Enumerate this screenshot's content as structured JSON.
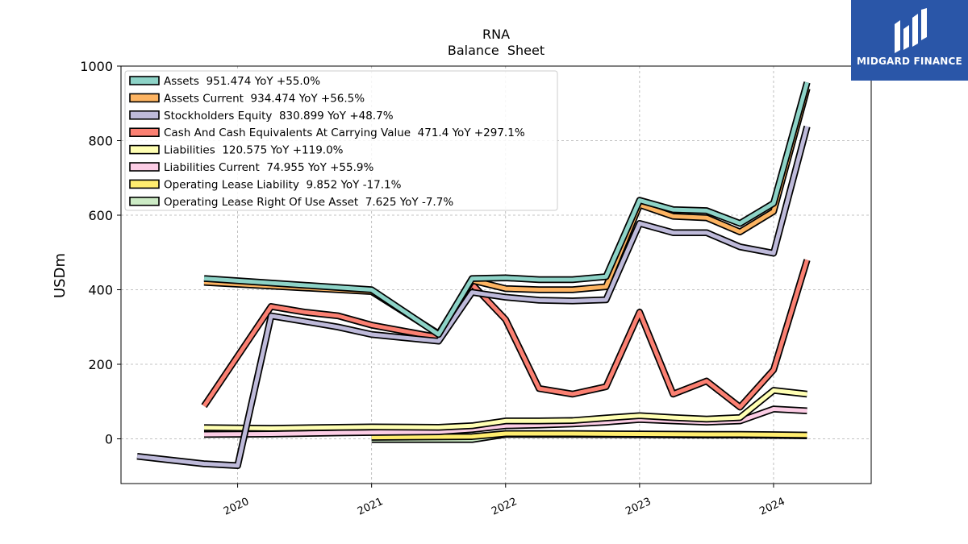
{
  "chart_data": {
    "type": "line",
    "title": "RNA",
    "subtitle": "Balance  Sheet",
    "ylabel": "USDm",
    "xlabel": "",
    "ylim": [
      -120,
      1000
    ],
    "yticks": [
      0,
      200,
      400,
      600,
      800,
      1000
    ],
    "xticks": [
      2020,
      2021,
      2022,
      2023,
      2024
    ],
    "x_range": [
      2019.25,
      2024.5
    ],
    "grid": true,
    "legend_position": "top-left",
    "series": [
      {
        "name": "Assets",
        "legend": "Assets  951.474 YoY +55.0%",
        "color": "#8dd3c7",
        "points": [
          [
            2019.75,
            430
          ],
          [
            2021.0,
            400
          ],
          [
            2021.5,
            280
          ],
          [
            2021.75,
            430
          ],
          [
            2022.0,
            432
          ],
          [
            2022.25,
            427
          ],
          [
            2022.5,
            427
          ],
          [
            2022.75,
            435
          ],
          [
            2023.0,
            640
          ],
          [
            2023.25,
            615
          ],
          [
            2023.5,
            612
          ],
          [
            2023.75,
            578
          ],
          [
            2024.0,
            632
          ],
          [
            2024.25,
            956
          ]
        ]
      },
      {
        "name": "Assets Current",
        "legend": "Assets Current  934.474 YoY +56.5%",
        "color": "#fdb462",
        "points": [
          [
            2019.75,
            420
          ],
          [
            2021.0,
            395
          ],
          [
            2021.5,
            282
          ],
          [
            2021.75,
            425
          ],
          [
            2022.0,
            403
          ],
          [
            2022.25,
            400
          ],
          [
            2022.5,
            400
          ],
          [
            2022.75,
            408
          ],
          [
            2023.0,
            628
          ],
          [
            2023.25,
            597
          ],
          [
            2023.5,
            593
          ],
          [
            2023.75,
            555
          ],
          [
            2024.0,
            610
          ],
          [
            2024.25,
            940
          ]
        ]
      },
      {
        "name": "Stockholders Equity",
        "legend": "Stockholders Equity  830.899 YoY +48.7%",
        "color": "#bebada",
        "points": [
          [
            2019.25,
            -47
          ],
          [
            2019.5,
            -57
          ],
          [
            2019.75,
            -67
          ],
          [
            2020.0,
            -72
          ],
          [
            2020.25,
            330
          ],
          [
            2020.5,
            315
          ],
          [
            2020.75,
            300
          ],
          [
            2021.0,
            280
          ],
          [
            2021.5,
            262
          ],
          [
            2021.75,
            393
          ],
          [
            2022.0,
            380
          ],
          [
            2022.25,
            372
          ],
          [
            2022.5,
            370
          ],
          [
            2022.75,
            373
          ],
          [
            2023.0,
            578
          ],
          [
            2023.25,
            553
          ],
          [
            2023.5,
            553
          ],
          [
            2023.75,
            515
          ],
          [
            2024.0,
            498
          ],
          [
            2024.25,
            838
          ]
        ]
      },
      {
        "name": "Cash And Cash Equivalents At Carrying Value",
        "legend": "Cash And Cash Equivalents At Carrying Value  471.4 YoY +297.1%",
        "color": "#fb8072",
        "points": [
          [
            2019.75,
            88
          ],
          [
            2020.25,
            355
          ],
          [
            2020.5,
            340
          ],
          [
            2020.75,
            330
          ],
          [
            2021.0,
            305
          ],
          [
            2021.5,
            272
          ],
          [
            2021.75,
            415
          ],
          [
            2022.0,
            320
          ],
          [
            2022.25,
            135
          ],
          [
            2022.5,
            120
          ],
          [
            2022.75,
            140
          ],
          [
            2023.0,
            340
          ],
          [
            2023.25,
            120
          ],
          [
            2023.5,
            155
          ],
          [
            2023.75,
            85
          ],
          [
            2024.0,
            185
          ],
          [
            2024.25,
            480
          ]
        ]
      },
      {
        "name": "Liabilities",
        "legend": "Liabilities  120.575 YoY +119.0%",
        "color": "#ffffb3",
        "points": [
          [
            2019.75,
            30
          ],
          [
            2020.25,
            28
          ],
          [
            2020.75,
            31
          ],
          [
            2021.0,
            32
          ],
          [
            2021.5,
            31
          ],
          [
            2021.75,
            35
          ],
          [
            2022.0,
            48
          ],
          [
            2022.25,
            48
          ],
          [
            2022.5,
            49
          ],
          [
            2022.75,
            56
          ],
          [
            2023.0,
            62
          ],
          [
            2023.25,
            57
          ],
          [
            2023.5,
            53
          ],
          [
            2023.75,
            57
          ],
          [
            2024.0,
            130
          ],
          [
            2024.25,
            120
          ]
        ]
      },
      {
        "name": "Liabilities Current",
        "legend": "Liabilities Current  74.955 YoY +55.9%",
        "color": "#fccde5",
        "points": [
          [
            2019.75,
            12
          ],
          [
            2020.25,
            13
          ],
          [
            2020.75,
            16
          ],
          [
            2021.0,
            17
          ],
          [
            2021.5,
            19
          ],
          [
            2021.75,
            25
          ],
          [
            2022.0,
            35
          ],
          [
            2022.25,
            37
          ],
          [
            2022.5,
            40
          ],
          [
            2022.75,
            45
          ],
          [
            2023.0,
            52
          ],
          [
            2023.25,
            48
          ],
          [
            2023.5,
            45
          ],
          [
            2023.75,
            48
          ],
          [
            2024.0,
            80
          ],
          [
            2024.25,
            75
          ]
        ]
      },
      {
        "name": "Operating Lease Liability",
        "legend": "Operating Lease Liability  9.852 YoY -17.1%",
        "color": "#ffed6f",
        "points": [
          [
            2021.0,
            4
          ],
          [
            2021.75,
            6
          ],
          [
            2022.0,
            14
          ],
          [
            2022.5,
            14
          ],
          [
            2023.0,
            13
          ],
          [
            2023.5,
            12
          ],
          [
            2023.75,
            12
          ],
          [
            2024.0,
            11
          ],
          [
            2024.25,
            10
          ]
        ]
      },
      {
        "name": "Operating Lease Right Of Use Asset",
        "legend": "Operating Lease Right Of Use Asset  7.625 YoY -7.7%",
        "color": "#ccebc5",
        "points": [
          [
            2021.0,
            -2
          ],
          [
            2021.75,
            -2
          ],
          [
            2022.0,
            12
          ],
          [
            2022.5,
            12
          ],
          [
            2023.0,
            11
          ],
          [
            2023.5,
            10
          ],
          [
            2023.75,
            10
          ],
          [
            2024.0,
            9
          ],
          [
            2024.25,
            8
          ]
        ]
      }
    ]
  },
  "logo": {
    "name": "MIDGARD FINANCE"
  }
}
